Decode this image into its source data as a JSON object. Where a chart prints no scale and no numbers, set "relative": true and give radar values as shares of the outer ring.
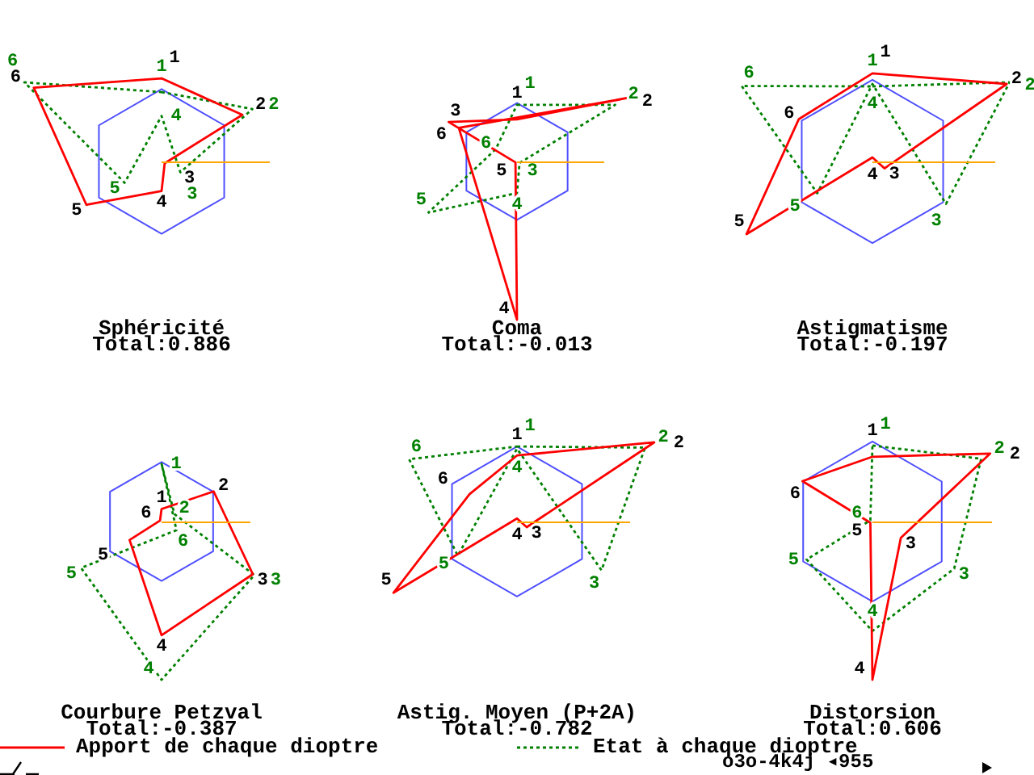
{
  "chart_data": [
    {
      "type": "radar",
      "title": "Sphéricité",
      "subtitle": "Total:0.886",
      "categories": [
        "1",
        "2",
        "3",
        "4",
        "5",
        "6"
      ],
      "relative": true,
      "grid": true,
      "marker": "none",
      "series": [
        {
          "color": "#ff0000",
          "line_style": "solid",
          "values": [
            1.15,
            1.29,
            0.05,
            0.41,
            1.2,
            2.04
          ]
        },
        {
          "color": "#008000",
          "line_style": "dotted",
          "values": [
            0.96,
            1.45,
            0.3,
            -0.63,
            0.59,
            2.19
          ]
        }
      ]
    },
    {
      "type": "radar",
      "title": "Coma",
      "subtitle": "Total:-0.013",
      "categories": [
        "1",
        "2",
        "3",
        "4",
        "5",
        "6"
      ],
      "relative": true,
      "grid": true,
      "marker": "none",
      "series": [
        {
          "color": "#ff0000",
          "line_style": "solid",
          "values": [
            0.72,
            2.17,
            -1.15,
            2.71,
            0.03,
            1.35
          ]
        },
        {
          "color": "#008000",
          "line_style": "dotted",
          "values": [
            0.97,
            1.94,
            0.05,
            0.54,
            1.75,
            0.42
          ]
        }
      ]
    },
    {
      "type": "radar",
      "title": "Astigmatisme",
      "subtitle": "Total:-0.197",
      "categories": [
        "1",
        "2",
        "3",
        "4",
        "5",
        "6"
      ],
      "relative": true,
      "grid": true,
      "marker": "none",
      "series": [
        {
          "color": "#ff0000",
          "line_style": "solid",
          "values": [
            1.08,
            1.9,
            0.17,
            -0.05,
            1.78,
            1.04
          ]
        },
        {
          "color": "#008000",
          "line_style": "dotted",
          "values": [
            0.92,
            1.94,
            1.04,
            -0.95,
            0.78,
            1.85
          ]
        }
      ]
    },
    {
      "type": "radar",
      "title": "Courbure Petzval",
      "subtitle": "Total:-0.387",
      "categories": [
        "1",
        "2",
        "3",
        "4",
        "5",
        "6"
      ],
      "relative": true,
      "grid": true,
      "marker": "none",
      "legend": "bottom",
      "series": [
        {
          "name": "Apport de chaque dioptre",
          "color": "#ff0000",
          "line_style": "solid",
          "values": [
            0.21,
            1.01,
            1.77,
            1.91,
            0.62,
            0.03
          ]
        },
        {
          "name": "Etat à chaque dioptre",
          "color": "#008000",
          "line_style": "dotted",
          "values": [
            0.97,
            0.25,
            1.8,
            2.66,
            1.56,
            -0.29
          ]
        }
      ]
    },
    {
      "type": "radar",
      "title": "Astig. Moyen (P+2A)",
      "subtitle": "Total:-0.782",
      "categories": [
        "1",
        "2",
        "3",
        "4",
        "5",
        "6"
      ],
      "relative": true,
      "grid": true,
      "marker": "none",
      "series": [
        {
          "color": "#ff0000",
          "line_style": "solid",
          "values": [
            0.88,
            2.11,
            0.15,
            -0.04,
            1.9,
            0.73
          ]
        },
        {
          "color": "#008000",
          "line_style": "dotted",
          "values": [
            1.0,
            1.97,
            1.3,
            -0.97,
            0.91,
            1.66
          ]
        }
      ]
    },
    {
      "type": "radar",
      "title": "Distorsion",
      "subtitle": "Total:0.606",
      "categories": [
        "1",
        "2",
        "3",
        "4",
        "5",
        "6"
      ],
      "relative": true,
      "grid": true,
      "marker": "none",
      "annotations": [
        "o3o-4k4j ◂955"
      ],
      "series": [
        {
          "color": "#ff0000",
          "line_style": "solid",
          "values": [
            0.81,
            1.7,
            0.41,
            1.98,
            0.03,
            1.01
          ]
        },
        {
          "color": "#008000",
          "line_style": "dotted",
          "values": [
            0.95,
            1.57,
            1.18,
            1.37,
            0.95,
            0.03
          ]
        }
      ]
    }
  ]
}
